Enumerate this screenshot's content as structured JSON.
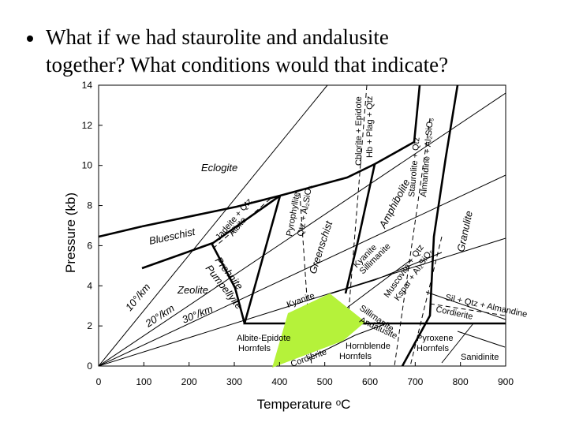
{
  "slide": {
    "question_lines": [
      "What if we had staurolite and andalusite",
      "together?  What conditions would that indicate?"
    ]
  },
  "diagram": {
    "xlabel": "Temperature ᵒC",
    "ylabel": "Pressure (kb)",
    "xlim": [
      0,
      900
    ],
    "ylim": [
      0,
      14
    ],
    "xticks": [
      0,
      100,
      200,
      300,
      400,
      500,
      600,
      700,
      800,
      900
    ],
    "yticks": [
      0,
      2,
      4,
      6,
      8,
      10,
      12,
      14
    ],
    "labels": [
      "Eclogite",
      "Blueschist",
      "Zeolite",
      "Prehnite",
      "Pumpellyite",
      "Greenschist",
      "Amphibolite",
      "Granulite",
      "Albite-Epidote",
      "Hornfels",
      "Hornblende",
      "Hornfels",
      "Pyroxene",
      "Hornfels",
      "Sanidinite",
      "10°/km",
      "20°/km",
      "30°/km",
      "Chlorite + Epidote",
      "Hb + Plag + Qtz",
      "Staurolite + Qtz",
      "Almandine + Al₂SiO₅",
      "Pyrophyllite",
      "Qtz + Al₂SiO₅",
      "Jadeite + Qtz",
      "Albite",
      "Kyanite",
      "Sillimanite",
      "Andalusite",
      "Muscovite + Qtz",
      "Kspar + Al₂SiO₅",
      "Sil + Qtz + Almandine",
      "Cordierite"
    ]
  }
}
